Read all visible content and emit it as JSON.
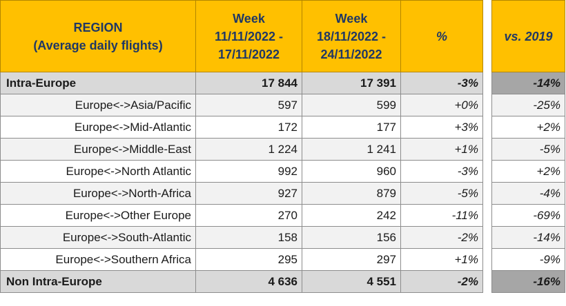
{
  "header": {
    "region_line1": "REGION",
    "region_line2": "(Average daily flights)",
    "week1_line1": "Week",
    "week1_line2": "11/11/2022 -",
    "week1_line3": "17/11/2022",
    "week2_line1": "Week",
    "week2_line2": "18/11/2022 -",
    "week2_line3": "24/11/2022",
    "pct": "%",
    "vs2019": "vs. 2019"
  },
  "rows": [
    {
      "region": "Intra-Europe",
      "w1": "17 844",
      "w2": "17 391",
      "pct": "-3%",
      "vs2019": "-14%",
      "total": true
    },
    {
      "region": "Europe<->Asia/Pacific",
      "w1": "597",
      "w2": "599",
      "pct": "+0%",
      "vs2019": "-25%"
    },
    {
      "region": "Europe<->Mid-Atlantic",
      "w1": "172",
      "w2": "177",
      "pct": "+3%",
      "vs2019": "+2%"
    },
    {
      "region": "Europe<->Middle-East",
      "w1": "1 224",
      "w2": "1 241",
      "pct": "+1%",
      "vs2019": "-5%"
    },
    {
      "region": "Europe<->North Atlantic",
      "w1": "992",
      "w2": "960",
      "pct": "-3%",
      "vs2019": "+2%"
    },
    {
      "region": "Europe<->North-Africa",
      "w1": "927",
      "w2": "879",
      "pct": "-5%",
      "vs2019": "-4%"
    },
    {
      "region": "Europe<->Other Europe",
      "w1": "270",
      "w2": "242",
      "pct": "-11%",
      "vs2019": "-69%"
    },
    {
      "region": "Europe<->South-Atlantic",
      "w1": "158",
      "w2": "156",
      "pct": "-2%",
      "vs2019": "-14%"
    },
    {
      "region": "Europe<->Southern Africa",
      "w1": "295",
      "w2": "297",
      "pct": "+1%",
      "vs2019": "-9%"
    },
    {
      "region": "Non Intra-Europe",
      "w1": "4 636",
      "w2": "4 551",
      "pct": "-2%",
      "vs2019": "-16%",
      "total": true
    }
  ],
  "colors": {
    "header_bg": "#ffc000",
    "header_text": "#203864",
    "total_bg": "#d9d9d9",
    "total_vs_bg": "#a6a6a6",
    "alt_row_bg": "#f2f2f2"
  }
}
